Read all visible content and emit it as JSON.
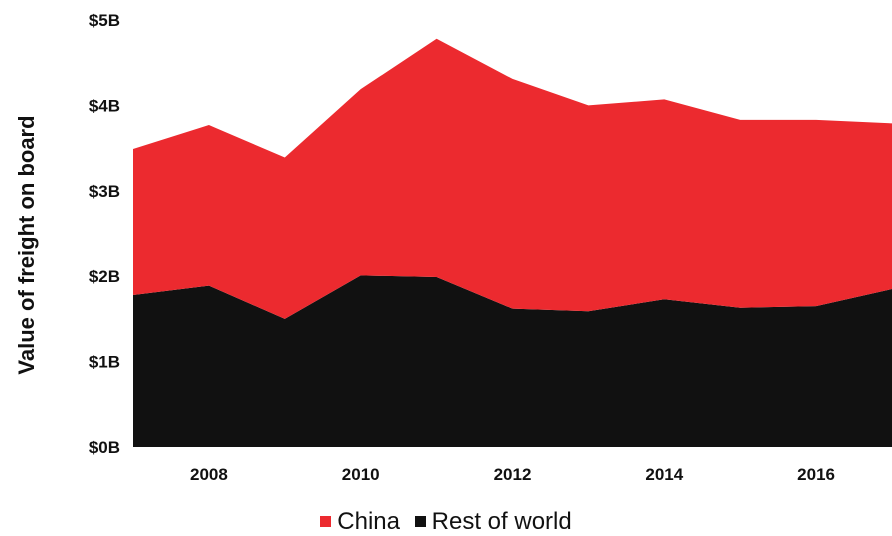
{
  "chart_data": {
    "type": "area",
    "stacked": true,
    "x": [
      2007,
      2008,
      2009,
      2010,
      2011,
      2012,
      2013,
      2014,
      2015,
      2016,
      2017
    ],
    "series": [
      {
        "name": "Rest of world",
        "color": "#111111",
        "values": [
          1.78,
          1.89,
          1.5,
          2.01,
          1.99,
          1.62,
          1.59,
          1.73,
          1.63,
          1.65,
          1.85
        ]
      },
      {
        "name": "China",
        "color": "#ec2a2f",
        "values": [
          1.71,
          1.88,
          1.89,
          2.18,
          2.79,
          2.69,
          2.41,
          2.34,
          2.2,
          2.18,
          1.94
        ]
      }
    ],
    "ylabel": "Value of freight on board",
    "xlabel": "",
    "ylim": [
      0,
      5
    ],
    "xlim": [
      2007,
      2017
    ],
    "yticks": [
      {
        "value": 0,
        "label": "$0B"
      },
      {
        "value": 1,
        "label": "$1B"
      },
      {
        "value": 2,
        "label": "$2B"
      },
      {
        "value": 3,
        "label": "$3B"
      },
      {
        "value": 4,
        "label": "$4B"
      },
      {
        "value": 5,
        "label": "$5B"
      }
    ],
    "xticks": [
      {
        "value": 2008,
        "label": "2008"
      },
      {
        "value": 2010,
        "label": "2010"
      },
      {
        "value": 2012,
        "label": "2012"
      },
      {
        "value": 2014,
        "label": "2014"
      },
      {
        "value": 2016,
        "label": "2016"
      }
    ],
    "grid": false,
    "legend_position": "bottom-center",
    "legend": [
      {
        "label": "China",
        "color": "#ec2a2f"
      },
      {
        "label": "Rest of world",
        "color": "#111111"
      }
    ]
  }
}
